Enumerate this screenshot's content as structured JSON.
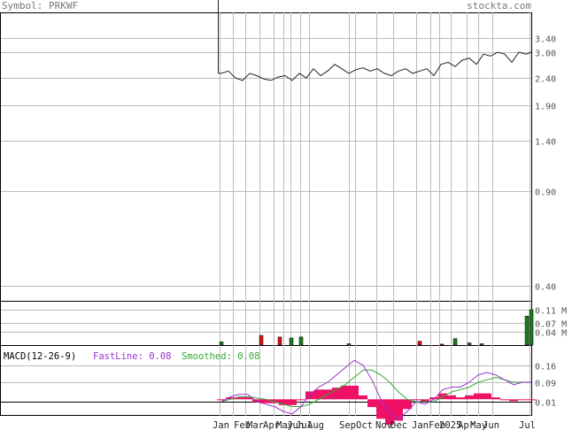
{
  "header": {
    "symbol_label": "Symbol: PRKWF",
    "site_label": "stockta.com"
  },
  "macd_panel": {
    "title": "MACD(12-26-9)",
    "fast_label": "FastLine: 0.08",
    "smoothed_label": "Smoothed: 0.08"
  },
  "colors": {
    "price_line": "#222222",
    "grid": "#bbbbbb",
    "volume_up": "#1f7a1f",
    "volume_down": "#dd1111",
    "macd_fast": "#9933cc",
    "macd_smooth": "#33aa33",
    "macd_hist": "#ee1166"
  },
  "chart_data": [
    {
      "type": "line",
      "name": "price",
      "scale": "log",
      "y_ticks": [
        "3.40",
        "3.00",
        "2.40",
        "1.90",
        "1.40",
        "0.90",
        "0.40"
      ],
      "x_ticks": [
        "Jan",
        "Feb",
        "Mar",
        "Apr",
        "May",
        "Jun",
        "Jul",
        "Aug",
        "Sep",
        "Oct",
        "Nov",
        "Dec",
        "Jan",
        "Feb",
        "2025",
        "Apr",
        "May",
        "Jun",
        "Jul"
      ],
      "x": [
        0,
        8,
        16,
        24,
        32,
        40,
        48,
        56,
        64,
        72,
        80,
        88,
        96,
        104,
        112,
        120,
        128,
        136,
        144,
        152,
        160,
        168,
        176,
        184,
        192,
        200,
        208,
        216,
        224,
        232,
        240,
        248,
        256,
        264,
        272,
        280,
        288,
        296,
        304,
        312,
        320,
        328,
        336,
        344,
        350
      ],
      "values": [
        2.5,
        2.55,
        2.4,
        2.35,
        2.5,
        2.45,
        2.38,
        2.35,
        2.42,
        2.45,
        2.35,
        2.5,
        2.4,
        2.6,
        2.45,
        2.55,
        2.7,
        2.6,
        2.5,
        2.58,
        2.62,
        2.55,
        2.6,
        2.5,
        2.45,
        2.55,
        2.6,
        2.5,
        2.55,
        2.6,
        2.45,
        2.7,
        2.75,
        2.65,
        2.8,
        2.85,
        2.7,
        2.95,
        2.9,
        3.0,
        2.95,
        2.75,
        3.0,
        2.95,
        3.0
      ]
    },
    {
      "type": "bar",
      "name": "volume",
      "y_ticks": [
        "0.11 M",
        "0.07 M",
        "0.04 M"
      ],
      "x": [
        0,
        45,
        66,
        79,
        90,
        144,
        224,
        249,
        264,
        280,
        294,
        345,
        350
      ],
      "values": [
        0.01,
        0.03,
        0.025,
        0.022,
        0.025,
        0.004,
        0.012,
        0.003,
        0.02,
        0.007,
        0.004,
        0.09,
        0.11
      ],
      "direction": [
        "up",
        "down",
        "down",
        "up",
        "up",
        "up",
        "down",
        "down",
        "up",
        "up",
        "up",
        "up",
        "up"
      ]
    },
    {
      "type": "line",
      "name": "macd",
      "y_ticks": [
        "0.16",
        "0.09",
        "0.01"
      ],
      "x": [
        0,
        10,
        20,
        30,
        40,
        50,
        60,
        70,
        80,
        90,
        100,
        110,
        120,
        130,
        140,
        150,
        160,
        170,
        180,
        190,
        200,
        210,
        220,
        230,
        240,
        250,
        260,
        270,
        280,
        290,
        300,
        310,
        320,
        330,
        340,
        350
      ],
      "fast": [
        0.0,
        0.02,
        0.03,
        0.03,
        0.0,
        -0.01,
        -0.02,
        -0.04,
        -0.05,
        -0.02,
        0.03,
        0.06,
        0.08,
        0.11,
        0.14,
        0.17,
        0.15,
        0.09,
        0.01,
        -0.05,
        -0.07,
        -0.04,
        0.0,
        -0.01,
        0.01,
        0.05,
        0.06,
        0.06,
        0.08,
        0.11,
        0.12,
        0.11,
        0.09,
        0.07,
        0.08,
        0.08
      ],
      "smoothed": [
        0.0,
        0.01,
        0.02,
        0.02,
        0.015,
        0.01,
        0.0,
        -0.01,
        -0.02,
        -0.02,
        -0.01,
        0.01,
        0.03,
        0.05,
        0.07,
        0.1,
        0.13,
        0.13,
        0.11,
        0.08,
        0.04,
        0.01,
        0.0,
        0.0,
        0.0,
        0.02,
        0.04,
        0.05,
        0.06,
        0.08,
        0.09,
        0.1,
        0.09,
        0.08,
        0.08,
        0.08
      ]
    }
  ]
}
